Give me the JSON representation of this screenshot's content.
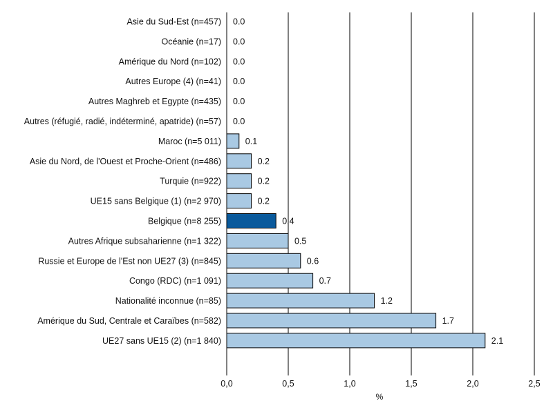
{
  "chart_data": {
    "type": "bar",
    "orientation": "horizontal",
    "categories": [
      "Asie du Sud-Est (n=457)",
      "Océanie (n=17)",
      "Amérique du Nord (n=102)",
      "Autres Europe (4) (n=41)",
      "Autres Maghreb et Egypte (n=435)",
      "Autres (réfugié, radié, indéterminé, apatride) (n=57)",
      "Maroc (n=5 011)",
      "Asie du Nord, de l'Ouest et Proche-Orient (n=486)",
      "Turquie (n=922)",
      "UE15 sans Belgique (1) (n=2 970)",
      "Belgique (n=8 255)",
      "Autres Afrique subsaharienne (n=1 322)",
      "Russie et Europe de l'Est non UE27 (3) (n=845)",
      "Congo (RDC) (n=1 091)",
      "Nationalité inconnue (n=85)",
      "Amérique du Sud, Centrale et Caraïbes (n=582)",
      "UE27 sans UE15 (2) (n=1 840)"
    ],
    "values": [
      0.0,
      0.0,
      0.0,
      0.0,
      0.0,
      0.0,
      0.1,
      0.2,
      0.2,
      0.2,
      0.4,
      0.5,
      0.6,
      0.7,
      1.2,
      1.7,
      2.1
    ],
    "value_labels": [
      "0.0",
      "0.0",
      "0.0",
      "0.0",
      "0.0",
      "0.0",
      "0.1",
      "0.2",
      "0.2",
      "0.2",
      "0.4",
      "0.5",
      "0.6",
      "0.7",
      "1.2",
      "1.7",
      "2.1"
    ],
    "highlight_category": "Belgique (n=8 255)",
    "xlabel": "%",
    "xlim": [
      0,
      2.5
    ],
    "xticks": [
      0,
      0.5,
      1.0,
      1.5,
      2.0,
      2.5
    ],
    "xtick_labels": [
      "0,0",
      "0,5",
      "1,0",
      "1,5",
      "2,0",
      "2,5"
    ],
    "grid": "vertical",
    "colors": {
      "bar": "#a9c9e3",
      "highlight": "#0a5a9c",
      "outline": "#000000"
    }
  }
}
